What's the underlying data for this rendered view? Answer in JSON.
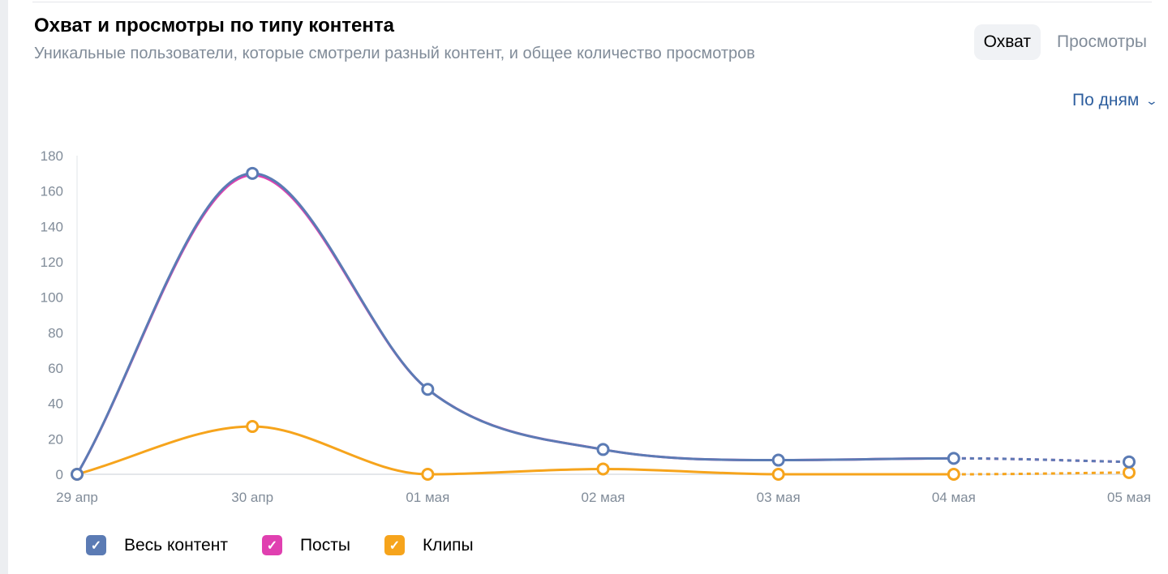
{
  "header": {
    "title": "Охват и просмотры по типу контента",
    "subtitle": "Уникальные пользователи, которые смотрели разный контент, и общее количество просмотров"
  },
  "tabs": [
    {
      "label": "Охват",
      "active": true
    },
    {
      "label": "Просмотры",
      "active": false
    }
  ],
  "period": {
    "label": "По дням",
    "icon": "chevron-down-icon"
  },
  "chart_data": {
    "type": "line",
    "x": [
      "29 апр",
      "30 апр",
      "01 мая",
      "02 мая",
      "03 мая",
      "04 мая",
      "05 мая"
    ],
    "yticks": [
      0,
      20,
      40,
      60,
      80,
      100,
      120,
      140,
      160,
      180
    ],
    "ylim": [
      0,
      180
    ],
    "dashed_last_segment": true,
    "series": [
      {
        "name": "Весь контент",
        "color": "#5b7bb4",
        "values": [
          0,
          170,
          48,
          14,
          8,
          9,
          7
        ]
      },
      {
        "name": "Посты",
        "color": "#e040b0",
        "values": [
          0,
          169,
          48,
          14,
          8,
          9,
          7
        ]
      },
      {
        "name": "Клипы",
        "color": "#f6a41c",
        "values": [
          0,
          27,
          0,
          3,
          0,
          0,
          1
        ]
      }
    ],
    "legend_position": "bottom-left"
  }
}
